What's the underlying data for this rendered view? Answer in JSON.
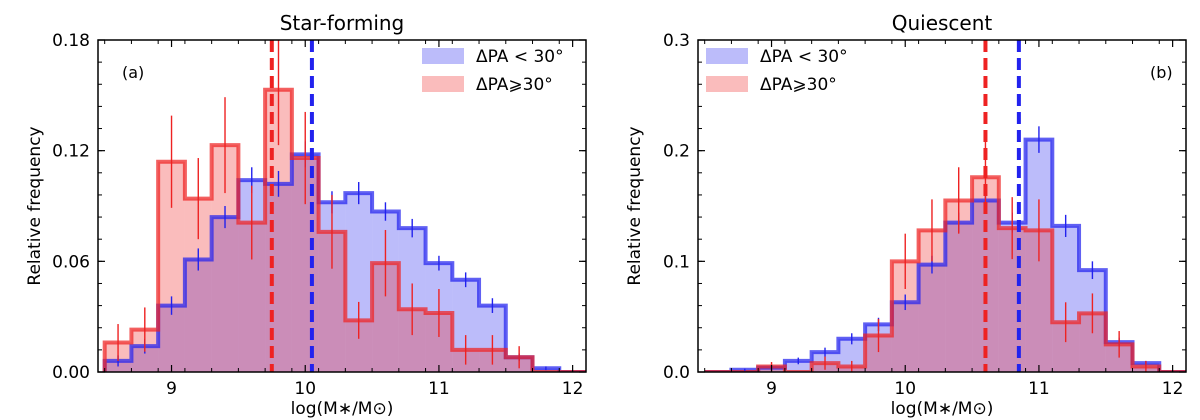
{
  "chart_data": [
    {
      "type": "bar",
      "panel_label": "(a)",
      "title": "Star-forming",
      "xlabel": "log(M∗/M⊙)",
      "ylabel": "Relative frequency",
      "xlim": [
        8.45,
        12.1
      ],
      "ylim": [
        0,
        0.18
      ],
      "xticks": [
        9,
        10,
        11,
        12
      ],
      "yticks": [
        0.0,
        0.06,
        0.12,
        0.18
      ],
      "ytick_labels": [
        "0.00",
        "0.06",
        "0.12",
        "0.18"
      ],
      "bin_edges": [
        8.5,
        8.7,
        8.9,
        9.1,
        9.3,
        9.5,
        9.7,
        9.9,
        10.1,
        10.3,
        10.5,
        10.7,
        10.9,
        11.1,
        11.3,
        11.5,
        11.7,
        11.9,
        12.1
      ],
      "legend_position": "top-right",
      "series": [
        {
          "name": "ΔPA < 30°",
          "color": "#2222ee",
          "values": [
            0.006,
            0.014,
            0.036,
            0.061,
            0.084,
            0.104,
            0.102,
            0.118,
            0.092,
            0.097,
            0.087,
            0.078,
            0.059,
            0.05,
            0.036,
            0.008,
            0.002,
            0
          ],
          "errors": [
            0.003,
            0.004,
            0.005,
            0.006,
            0.006,
            0.007,
            0.007,
            0.007,
            0.006,
            0.006,
            0.005,
            0.005,
            0.004,
            0.004,
            0.004,
            0.002,
            0.001,
            0
          ]
        },
        {
          "name": "ΔPA⩾30°",
          "color": "#ee2222",
          "values": [
            0.016,
            0.023,
            0.114,
            0.094,
            0.123,
            0.081,
            0.153,
            0.116,
            0.076,
            0.028,
            0.059,
            0.034,
            0.032,
            0.012,
            0.012,
            0.008,
            0,
            0
          ],
          "errors": [
            0.01,
            0.012,
            0.025,
            0.022,
            0.026,
            0.02,
            0.03,
            0.025,
            0.02,
            0.01,
            0.018,
            0.014,
            0.013,
            0.008,
            0.008,
            0.006,
            0,
            0
          ]
        }
      ],
      "vlines": [
        {
          "x": 9.75,
          "color": "#ee2222"
        },
        {
          "x": 10.05,
          "color": "#2222ee"
        }
      ]
    },
    {
      "type": "bar",
      "panel_label": "(b)",
      "title": "Quiescent",
      "xlabel": "log(M∗/M⊙)",
      "ylabel": "Relative frequency",
      "xlim": [
        8.45,
        12.1
      ],
      "ylim": [
        0,
        0.3
      ],
      "xticks": [
        9,
        10,
        11,
        12
      ],
      "yticks": [
        0.0,
        0.1,
        0.2,
        0.3
      ],
      "ytick_labels": [
        "0.0",
        "0.1",
        "0.2",
        "0.3"
      ],
      "bin_edges": [
        8.5,
        8.7,
        8.9,
        9.1,
        9.3,
        9.5,
        9.7,
        9.9,
        10.1,
        10.3,
        10.5,
        10.7,
        10.9,
        11.1,
        11.3,
        11.5,
        11.7,
        11.9,
        12.1
      ],
      "legend_position": "top-left",
      "series": [
        {
          "name": "ΔPA < 30°",
          "color": "#2222ee",
          "values": [
            0,
            0.002,
            0.004,
            0.01,
            0.018,
            0.03,
            0.043,
            0.063,
            0.097,
            0.135,
            0.155,
            0.135,
            0.21,
            0.132,
            0.092,
            0.027,
            0.008,
            0
          ],
          "errors": [
            0,
            0.001,
            0.002,
            0.003,
            0.004,
            0.005,
            0.006,
            0.007,
            0.008,
            0.009,
            0.01,
            0.009,
            0.012,
            0.01,
            0.008,
            0.004,
            0.002,
            0
          ]
        },
        {
          "name": "ΔPA⩾30°",
          "color": "#ee2222",
          "values": [
            0,
            0,
            0.005,
            0,
            0.008,
            0.005,
            0.033,
            0.1,
            0.128,
            0.155,
            0.176,
            0.13,
            0.128,
            0.045,
            0.053,
            0.025,
            0.005,
            0
          ],
          "errors": [
            0,
            0,
            0.004,
            0,
            0.006,
            0.005,
            0.015,
            0.025,
            0.028,
            0.03,
            0.032,
            0.028,
            0.028,
            0.018,
            0.018,
            0.012,
            0.005,
            0
          ]
        }
      ],
      "vlines": [
        {
          "x": 10.6,
          "color": "#ee2222"
        },
        {
          "x": 10.85,
          "color": "#2222ee"
        }
      ]
    }
  ]
}
